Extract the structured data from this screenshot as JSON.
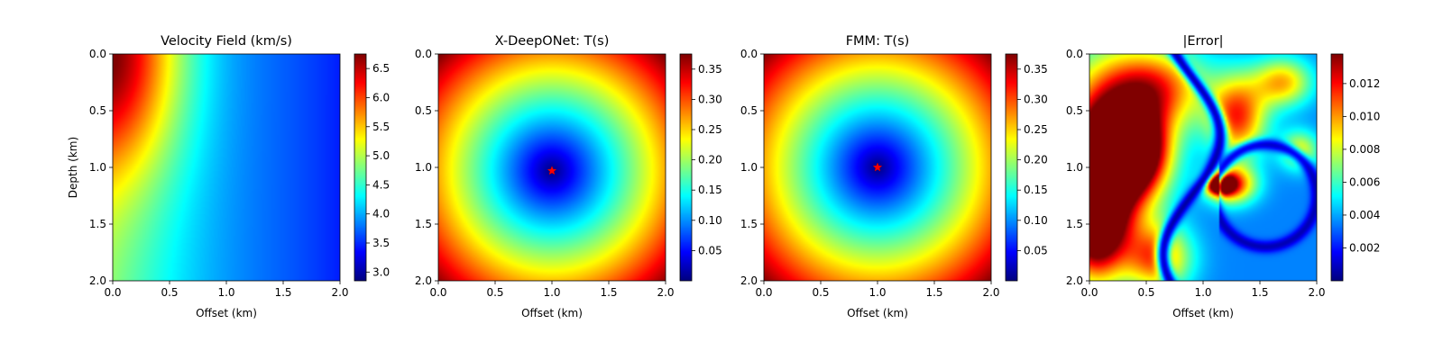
{
  "chart_data": [
    {
      "type": "heatmap",
      "title": "Velocity Field (km/s)",
      "xlabel": "Offset (km)",
      "ylabel": "Depth (km)",
      "xlim": [
        0,
        2.0
      ],
      "ylim": [
        2.0,
        0
      ],
      "xticks": [
        "0.0",
        "0.5",
        "1.0",
        "1.5",
        "2.0"
      ],
      "yticks": [
        "0.0",
        "0.5",
        "1.0",
        "1.5",
        "2.0"
      ],
      "colormap": "jet",
      "colorbar": {
        "range": [
          2.85,
          6.75
        ],
        "ticks": [
          "3.0",
          "3.5",
          "4.0",
          "4.5",
          "5.0",
          "5.5",
          "6.0",
          "6.5"
        ]
      },
      "field": {
        "kind": "velocity",
        "v_surface_left": 6.7,
        "v_right": 3.3,
        "v_bottom_left": 4.8
      },
      "grid": false
    },
    {
      "type": "heatmap",
      "title": "X-DeepONet: T(s)",
      "xlabel": "Offset (km)",
      "ylabel": "",
      "xlim": [
        0,
        2.0
      ],
      "ylim": [
        2.0,
        0
      ],
      "xticks": [
        "0.0",
        "0.5",
        "1.0",
        "1.5",
        "2.0"
      ],
      "yticks": [
        "0.0",
        "0.5",
        "1.0",
        "1.5",
        "2.0"
      ],
      "colormap": "jet",
      "colorbar": {
        "range": [
          0,
          0.375
        ],
        "ticks": [
          "0.05",
          "0.10",
          "0.15",
          "0.20",
          "0.25",
          "0.30",
          "0.35"
        ]
      },
      "source": {
        "x": 1.0,
        "z": 1.03,
        "marker": "red-star"
      },
      "field": {
        "kind": "traveltime",
        "t_max": 0.375
      },
      "grid": false
    },
    {
      "type": "heatmap",
      "title": "FMM: T(s)",
      "xlabel": "Offset (km)",
      "ylabel": "",
      "xlim": [
        0,
        2.0
      ],
      "ylim": [
        2.0,
        0
      ],
      "xticks": [
        "0.0",
        "0.5",
        "1.0",
        "1.5",
        "2.0"
      ],
      "yticks": [
        "0.0",
        "0.5",
        "1.0",
        "1.5",
        "2.0"
      ],
      "colormap": "jet",
      "colorbar": {
        "range": [
          0,
          0.375
        ],
        "ticks": [
          "0.05",
          "0.10",
          "0.15",
          "0.20",
          "0.25",
          "0.30",
          "0.35"
        ]
      },
      "source": {
        "x": 1.0,
        "z": 1.0,
        "marker": "red-star"
      },
      "field": {
        "kind": "traveltime",
        "t_max": 0.375
      },
      "grid": false
    },
    {
      "type": "heatmap",
      "title": "|Error|",
      "xlabel": "Offset (km)",
      "ylabel": "",
      "xlim": [
        0,
        2.0
      ],
      "ylim": [
        2.0,
        0
      ],
      "xticks": [
        "0.0",
        "0.5",
        "1.0",
        "1.5",
        "2.0"
      ],
      "yticks": [
        "0.0",
        "0.5",
        "1.0",
        "1.5",
        "2.0"
      ],
      "colormap": "jet",
      "colorbar": {
        "range": [
          0.0,
          0.0138
        ],
        "ticks": [
          "0.002",
          "0.004",
          "0.006",
          "0.008",
          "0.010",
          "0.012"
        ]
      },
      "field": {
        "kind": "error",
        "blobs": [
          {
            "x": 0.35,
            "z": 0.85,
            "sx": 0.22,
            "sz": 0.25,
            "amp": 0.0135
          },
          {
            "x": 0.05,
            "z": 1.45,
            "sx": 0.18,
            "sz": 0.35,
            "amp": 0.012
          },
          {
            "x": 0.15,
            "z": 0.9,
            "sx": 0.3,
            "sz": 0.55,
            "amp": 0.011
          },
          {
            "x": 1.15,
            "z": 1.15,
            "sx": 0.08,
            "sz": 0.06,
            "amp": 0.0125
          },
          {
            "x": 1.3,
            "z": 0.55,
            "sx": 0.18,
            "sz": 0.25,
            "amp": 0.008
          },
          {
            "x": 1.25,
            "z": 1.15,
            "sx": 0.15,
            "sz": 0.12,
            "amp": 0.008
          },
          {
            "x": 0.6,
            "z": 0.3,
            "sx": 0.3,
            "sz": 0.25,
            "amp": 0.007
          },
          {
            "x": 0.6,
            "z": 1.8,
            "sx": 0.2,
            "sz": 0.2,
            "amp": 0.007
          },
          {
            "x": 1.7,
            "z": 0.25,
            "sx": 0.18,
            "sz": 0.15,
            "amp": 0.006
          },
          {
            "x": 1.85,
            "z": 0.85,
            "sx": 0.12,
            "sz": 0.12,
            "amp": 0.005
          }
        ],
        "background": 0.0035
      },
      "grid": false
    }
  ]
}
